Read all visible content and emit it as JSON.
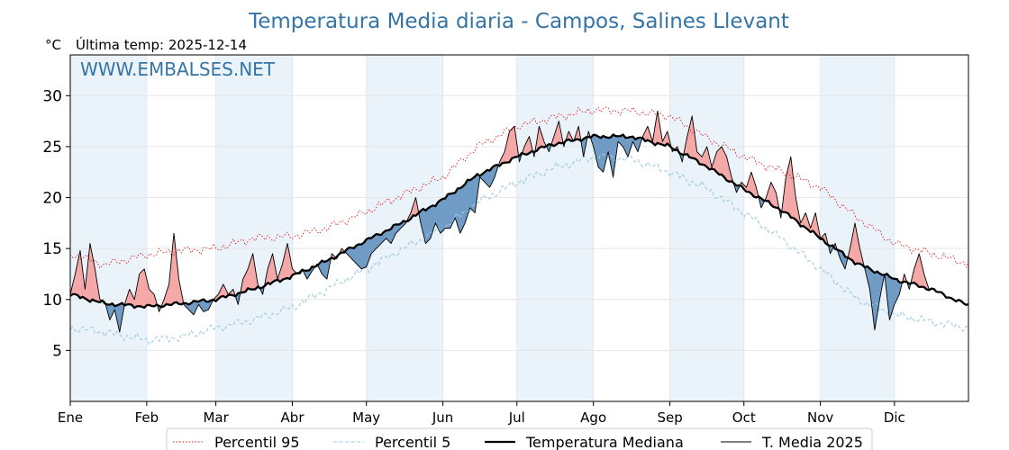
{
  "chart_data": {
    "type": "line",
    "title": "Temperatura Media diaria - Campos, Salines Llevant",
    "unit_label": "°C",
    "subtitle": "Última temp: 2025-12-14",
    "watermark": "WWW.EMBALSES.NET",
    "xlabel": "",
    "ylabel": "",
    "xlim": [
      1,
      365
    ],
    "ylim": [
      0,
      34
    ],
    "yticks": [
      5,
      10,
      15,
      20,
      25,
      30
    ],
    "months": [
      "Ene",
      "Feb",
      "Mar",
      "Abr",
      "May",
      "Jun",
      "Jul",
      "Ago",
      "Sep",
      "Oct",
      "Nov",
      "Dic"
    ],
    "month_start_days": [
      1,
      32,
      60,
      91,
      121,
      152,
      182,
      213,
      244,
      274,
      305,
      335
    ],
    "grid": true,
    "legend_position": "bottom",
    "x_unit": "day of year",
    "series_keyframes": {
      "p95": [
        [
          1,
          14.5
        ],
        [
          15,
          13.4
        ],
        [
          32,
          14.4
        ],
        [
          46,
          14.8
        ],
        [
          60,
          15.0
        ],
        [
          75,
          16.0
        ],
        [
          91,
          16.2
        ],
        [
          105,
          17.0
        ],
        [
          121,
          18.6
        ],
        [
          136,
          20.3
        ],
        [
          152,
          22.0
        ],
        [
          166,
          25.0
        ],
        [
          182,
          27.0
        ],
        [
          196,
          27.8
        ],
        [
          213,
          28.6
        ],
        [
          228,
          28.5
        ],
        [
          244,
          28.0
        ],
        [
          258,
          26.0
        ],
        [
          274,
          24.0
        ],
        [
          289,
          22.6
        ],
        [
          305,
          21.0
        ],
        [
          320,
          18.0
        ],
        [
          335,
          15.5
        ],
        [
          350,
          14.5
        ],
        [
          365,
          13.5
        ]
      ],
      "p5": [
        [
          1,
          7.2
        ],
        [
          15,
          6.8
        ],
        [
          32,
          6.0
        ],
        [
          46,
          6.3
        ],
        [
          60,
          7.2
        ],
        [
          75,
          8.0
        ],
        [
          91,
          9.2
        ],
        [
          105,
          11.0
        ],
        [
          121,
          13.0
        ],
        [
          136,
          15.0
        ],
        [
          152,
          17.0
        ],
        [
          166,
          19.5
        ],
        [
          182,
          21.5
        ],
        [
          196,
          22.8
        ],
        [
          213,
          24.0
        ],
        [
          228,
          23.8
        ],
        [
          244,
          22.5
        ],
        [
          258,
          21.0
        ],
        [
          274,
          18.5
        ],
        [
          289,
          16.0
        ],
        [
          305,
          13.0
        ],
        [
          320,
          10.0
        ],
        [
          335,
          8.5
        ],
        [
          350,
          7.8
        ],
        [
          365,
          7.2
        ]
      ],
      "median": [
        [
          1,
          10.5
        ],
        [
          15,
          9.6
        ],
        [
          32,
          9.3
        ],
        [
          46,
          9.6
        ],
        [
          60,
          10.0
        ],
        [
          75,
          11.0
        ],
        [
          91,
          12.3
        ],
        [
          105,
          13.8
        ],
        [
          121,
          15.8
        ],
        [
          136,
          17.6
        ],
        [
          152,
          19.8
        ],
        [
          166,
          22.2
        ],
        [
          182,
          24.0
        ],
        [
          196,
          25.2
        ],
        [
          213,
          26.0
        ],
        [
          228,
          26.0
        ],
        [
          244,
          25.0
        ],
        [
          258,
          23.2
        ],
        [
          274,
          20.8
        ],
        [
          289,
          18.8
        ],
        [
          305,
          16.0
        ],
        [
          320,
          13.5
        ],
        [
          335,
          12.0
        ],
        [
          350,
          11.0
        ],
        [
          365,
          9.4
        ]
      ],
      "media_2025": [
        [
          1,
          10.5
        ],
        [
          3,
          12.5
        ],
        [
          5,
          14.8
        ],
        [
          7,
          11.0
        ],
        [
          9,
          15.5
        ],
        [
          11,
          13.0
        ],
        [
          13,
          10.0
        ],
        [
          15,
          9.8
        ],
        [
          17,
          8.0
        ],
        [
          19,
          9.0
        ],
        [
          21,
          6.8
        ],
        [
          23,
          9.5
        ],
        [
          25,
          11.0
        ],
        [
          27,
          10.0
        ],
        [
          29,
          12.5
        ],
        [
          31,
          13.0
        ],
        [
          33,
          11.0
        ],
        [
          35,
          10.5
        ],
        [
          37,
          8.8
        ],
        [
          39,
          10.0
        ],
        [
          41,
          11.5
        ],
        [
          43,
          16.5
        ],
        [
          45,
          12.0
        ],
        [
          47,
          9.5
        ],
        [
          49,
          9.0
        ],
        [
          51,
          8.5
        ],
        [
          53,
          9.5
        ],
        [
          55,
          8.8
        ],
        [
          57,
          9.0
        ],
        [
          59,
          10.0
        ],
        [
          61,
          10.5
        ],
        [
          63,
          11.5
        ],
        [
          65,
          10.5
        ],
        [
          67,
          11.0
        ],
        [
          69,
          9.5
        ],
        [
          71,
          12.0
        ],
        [
          73,
          13.0
        ],
        [
          75,
          14.5
        ],
        [
          77,
          11.5
        ],
        [
          79,
          10.5
        ],
        [
          81,
          13.0
        ],
        [
          83,
          14.5
        ],
        [
          85,
          12.0
        ],
        [
          87,
          13.5
        ],
        [
          89,
          15.5
        ],
        [
          91,
          13.0
        ],
        [
          93,
          12.5
        ],
        [
          95,
          13.0
        ],
        [
          97,
          12.0
        ],
        [
          99,
          12.8
        ],
        [
          101,
          13.5
        ],
        [
          103,
          12.5
        ],
        [
          105,
          12.0
        ],
        [
          107,
          14.5
        ],
        [
          109,
          14.0
        ],
        [
          111,
          15.0
        ],
        [
          113,
          14.5
        ],
        [
          115,
          14.0
        ],
        [
          117,
          13.5
        ],
        [
          119,
          13.0
        ],
        [
          121,
          13.2
        ],
        [
          123,
          14.5
        ],
        [
          125,
          15.0
        ],
        [
          127,
          15.5
        ],
        [
          129,
          16.0
        ],
        [
          131,
          15.5
        ],
        [
          133,
          16.5
        ],
        [
          135,
          17.0
        ],
        [
          137,
          17.5
        ],
        [
          139,
          18.5
        ],
        [
          141,
          20.0
        ],
        [
          143,
          17.5
        ],
        [
          145,
          15.5
        ],
        [
          147,
          16.0
        ],
        [
          149,
          17.5
        ],
        [
          151,
          16.5
        ],
        [
          153,
          17.0
        ],
        [
          155,
          17.0
        ],
        [
          157,
          18.0
        ],
        [
          159,
          16.5
        ],
        [
          161,
          17.5
        ],
        [
          163,
          19.0
        ],
        [
          165,
          18.5
        ],
        [
          167,
          22.0
        ],
        [
          169,
          21.5
        ],
        [
          171,
          21.0
        ],
        [
          173,
          22.0
        ],
        [
          175,
          23.5
        ],
        [
          177,
          24.5
        ],
        [
          179,
          26.5
        ],
        [
          181,
          27.0
        ],
        [
          183,
          23.5
        ],
        [
          185,
          25.0
        ],
        [
          187,
          26.0
        ],
        [
          189,
          24.0
        ],
        [
          191,
          27.0
        ],
        [
          193,
          25.5
        ],
        [
          195,
          24.5
        ],
        [
          197,
          26.0
        ],
        [
          199,
          27.5
        ],
        [
          201,
          25.0
        ],
        [
          203,
          26.5
        ],
        [
          205,
          25.5
        ],
        [
          207,
          27.0
        ],
        [
          209,
          24.0
        ],
        [
          211,
          26.5
        ],
        [
          213,
          25.0
        ],
        [
          215,
          23.0
        ],
        [
          217,
          22.5
        ],
        [
          219,
          24.5
        ],
        [
          221,
          22.0
        ],
        [
          223,
          25.5
        ],
        [
          225,
          25.0
        ],
        [
          227,
          24.0
        ],
        [
          229,
          25.5
        ],
        [
          231,
          24.5
        ],
        [
          233,
          26.0
        ],
        [
          235,
          27.0
        ],
        [
          237,
          25.5
        ],
        [
          239,
          28.5
        ],
        [
          241,
          25.5
        ],
        [
          243,
          26.5
        ],
        [
          245,
          24.5
        ],
        [
          247,
          25.0
        ],
        [
          249,
          23.5
        ],
        [
          251,
          26.0
        ],
        [
          253,
          28.0
        ],
        [
          255,
          24.5
        ],
        [
          257,
          24.0
        ],
        [
          259,
          25.0
        ],
        [
          261,
          23.0
        ],
        [
          263,
          24.5
        ],
        [
          265,
          25.0
        ],
        [
          267,
          24.0
        ],
        [
          269,
          22.0
        ],
        [
          271,
          20.5
        ],
        [
          273,
          21.5
        ],
        [
          275,
          21.0
        ],
        [
          277,
          22.5
        ],
        [
          279,
          21.0
        ],
        [
          281,
          19.0
        ],
        [
          283,
          20.0
        ],
        [
          285,
          21.5
        ],
        [
          287,
          20.5
        ],
        [
          289,
          18.0
        ],
        [
          291,
          22.0
        ],
        [
          293,
          24.0
        ],
        [
          295,
          20.0
        ],
        [
          297,
          17.5
        ],
        [
          299,
          18.5
        ],
        [
          301,
          17.0
        ],
        [
          303,
          18.5
        ],
        [
          305,
          16.0
        ],
        [
          307,
          16.5
        ],
        [
          309,
          14.5
        ],
        [
          311,
          15.5
        ],
        [
          313,
          14.0
        ],
        [
          315,
          13.0
        ],
        [
          317,
          15.0
        ],
        [
          319,
          17.5
        ],
        [
          321,
          15.0
        ],
        [
          323,
          13.0
        ],
        [
          325,
          11.0
        ],
        [
          327,
          7.0
        ],
        [
          329,
          10.0
        ],
        [
          331,
          12.5
        ],
        [
          333,
          8.0
        ],
        [
          335,
          9.5
        ],
        [
          337,
          10.5
        ],
        [
          339,
          12.5
        ],
        [
          341,
          11.0
        ],
        [
          343,
          13.0
        ],
        [
          345,
          14.5
        ],
        [
          347,
          12.5
        ],
        [
          349,
          11.0
        ]
      ]
    },
    "series": [
      {
        "key": "p95",
        "name": "Percentil 95",
        "color": "#e31a1c",
        "style": "dotted"
      },
      {
        "key": "p5",
        "name": "Percentil 5",
        "color": "#9ecae1",
        "style": "dashed"
      },
      {
        "key": "median",
        "name": "Temperatura Mediana",
        "color": "#000000",
        "style": "solid-thick"
      },
      {
        "key": "media_2025",
        "name": "T. Media 2025",
        "color": "#000000",
        "style": "solid"
      }
    ],
    "fill_above_color": "#f4a9a8",
    "fill_below_color": "#6f9bc4",
    "title_color": "#3474a6",
    "watermark_color": "#3474a6",
    "band_color": "#eaf2fa"
  }
}
